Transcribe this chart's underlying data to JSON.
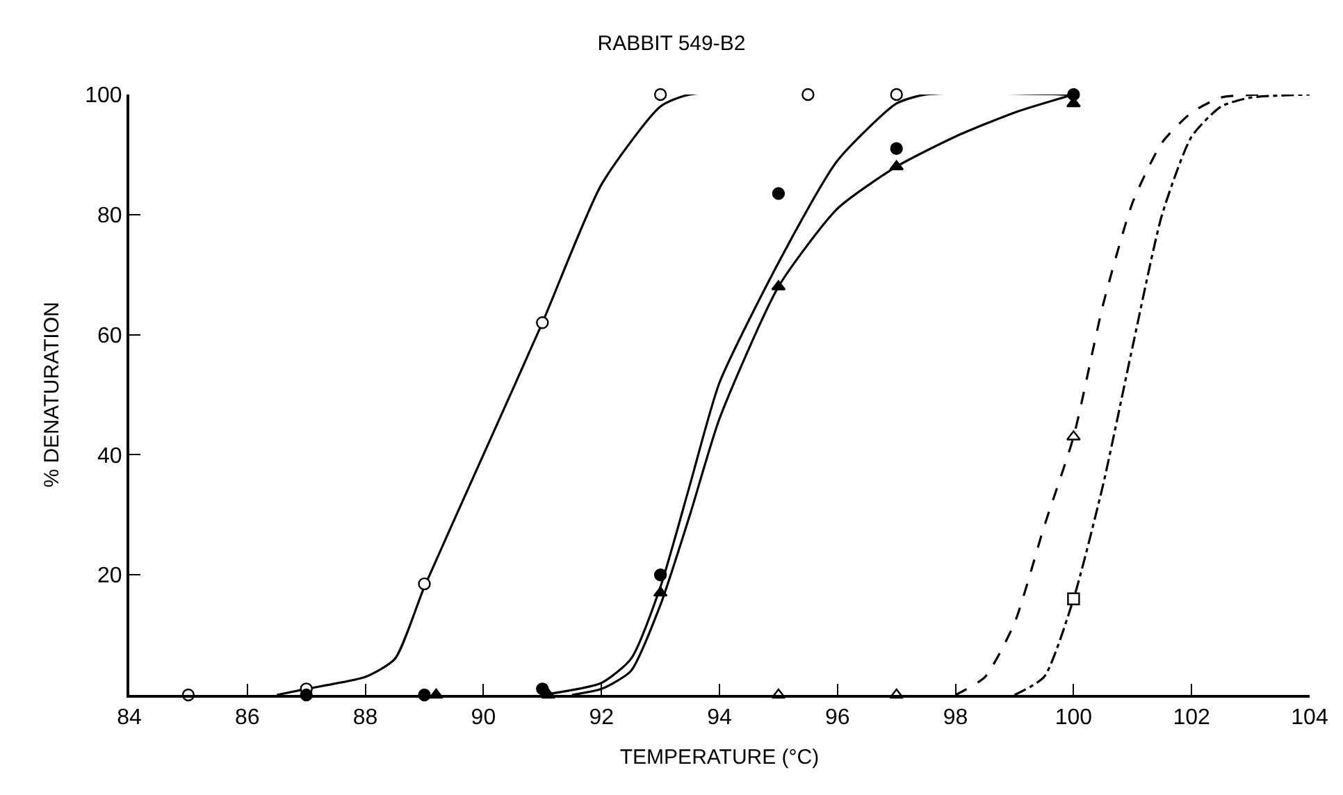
{
  "chart_data": {
    "type": "line",
    "title": "RABBIT 549-B2",
    "xlabel": "TEMPERATURE (°C)",
    "ylabel": "% DENATURATION",
    "xlim": [
      84,
      104
    ],
    "xticks": [
      84,
      86,
      88,
      90,
      92,
      94,
      96,
      98,
      100,
      102,
      104
    ],
    "ylim": [
      0,
      100
    ],
    "yticks": [
      {
        "value": 0,
        "label": null
      },
      20,
      40,
      60,
      80,
      100
    ],
    "series": [
      {
        "type": "scatter",
        "marker": "circle",
        "color": "#ffffff",
        "x": [
          85,
          87,
          89,
          91,
          93,
          95.5,
          97
        ],
        "values": [
          0,
          1,
          18.5,
          62,
          100,
          100,
          100
        ]
      },
      {
        "marker": "none",
        "line_style": "solid",
        "color": "#000000",
        "x": [
          86.5,
          87,
          88,
          88.5,
          89,
          90,
          91,
          92,
          93,
          93.5,
          100
        ],
        "values": [
          0,
          1,
          3,
          6,
          18,
          40,
          62,
          85,
          98,
          100,
          100
        ]
      },
      {
        "type": "scatter",
        "marker": "circle",
        "color": "#000000",
        "x": [
          87,
          89,
          91,
          93,
          95,
          97,
          100
        ],
        "values": [
          0,
          0,
          1,
          20,
          83.5,
          91,
          100
        ]
      },
      {
        "marker": "none",
        "line_style": "solid",
        "color": "#000000",
        "x": [
          91,
          92,
          92.5,
          93,
          93.5,
          94,
          95,
          96,
          97,
          97.5,
          100
        ],
        "values": [
          0,
          2,
          6,
          18,
          35,
          52,
          72,
          89,
          98.5,
          100,
          100
        ]
      },
      {
        "type": "scatter",
        "marker": "triangle",
        "color": "#000000",
        "x": [
          89.2,
          91.1,
          93,
          95,
          97,
          100
        ],
        "values": [
          0,
          0,
          17,
          68,
          88,
          98.5
        ]
      },
      {
        "marker": "none",
        "line_style": "solid",
        "color": "#000000",
        "x": [
          91.5,
          92,
          92.5,
          93,
          93.5,
          94,
          95,
          96,
          97,
          98,
          99,
          100
        ],
        "values": [
          0,
          1,
          4,
          15,
          30,
          46,
          68,
          81,
          88,
          93,
          97,
          100
        ]
      },
      {
        "type": "scatter",
        "marker": "triangle",
        "color": "#ffffff",
        "x": [
          95,
          97,
          100
        ],
        "values": [
          0,
          0,
          43
        ]
      },
      {
        "marker": "none",
        "line_style": "dashed",
        "color": "#000000",
        "x": [
          98,
          98.5,
          99,
          99.5,
          100,
          100.5,
          101,
          101.5,
          102,
          102.5,
          103.2
        ],
        "values": [
          0,
          3,
          12,
          28,
          43,
          65,
          82,
          92,
          97,
          99.5,
          100
        ]
      },
      {
        "type": "scatter",
        "marker": "square",
        "color": "#ffffff",
        "x": [
          100
        ],
        "values": [
          16
        ]
      },
      {
        "marker": "none",
        "line_style": "dashdot",
        "color": "#000000",
        "x": [
          99,
          99.5,
          100,
          100.5,
          101,
          101.5,
          102,
          102.5,
          103,
          104
        ],
        "values": [
          0,
          3,
          16,
          35,
          58,
          80,
          93,
          98,
          99.5,
          100
        ]
      }
    ]
  }
}
